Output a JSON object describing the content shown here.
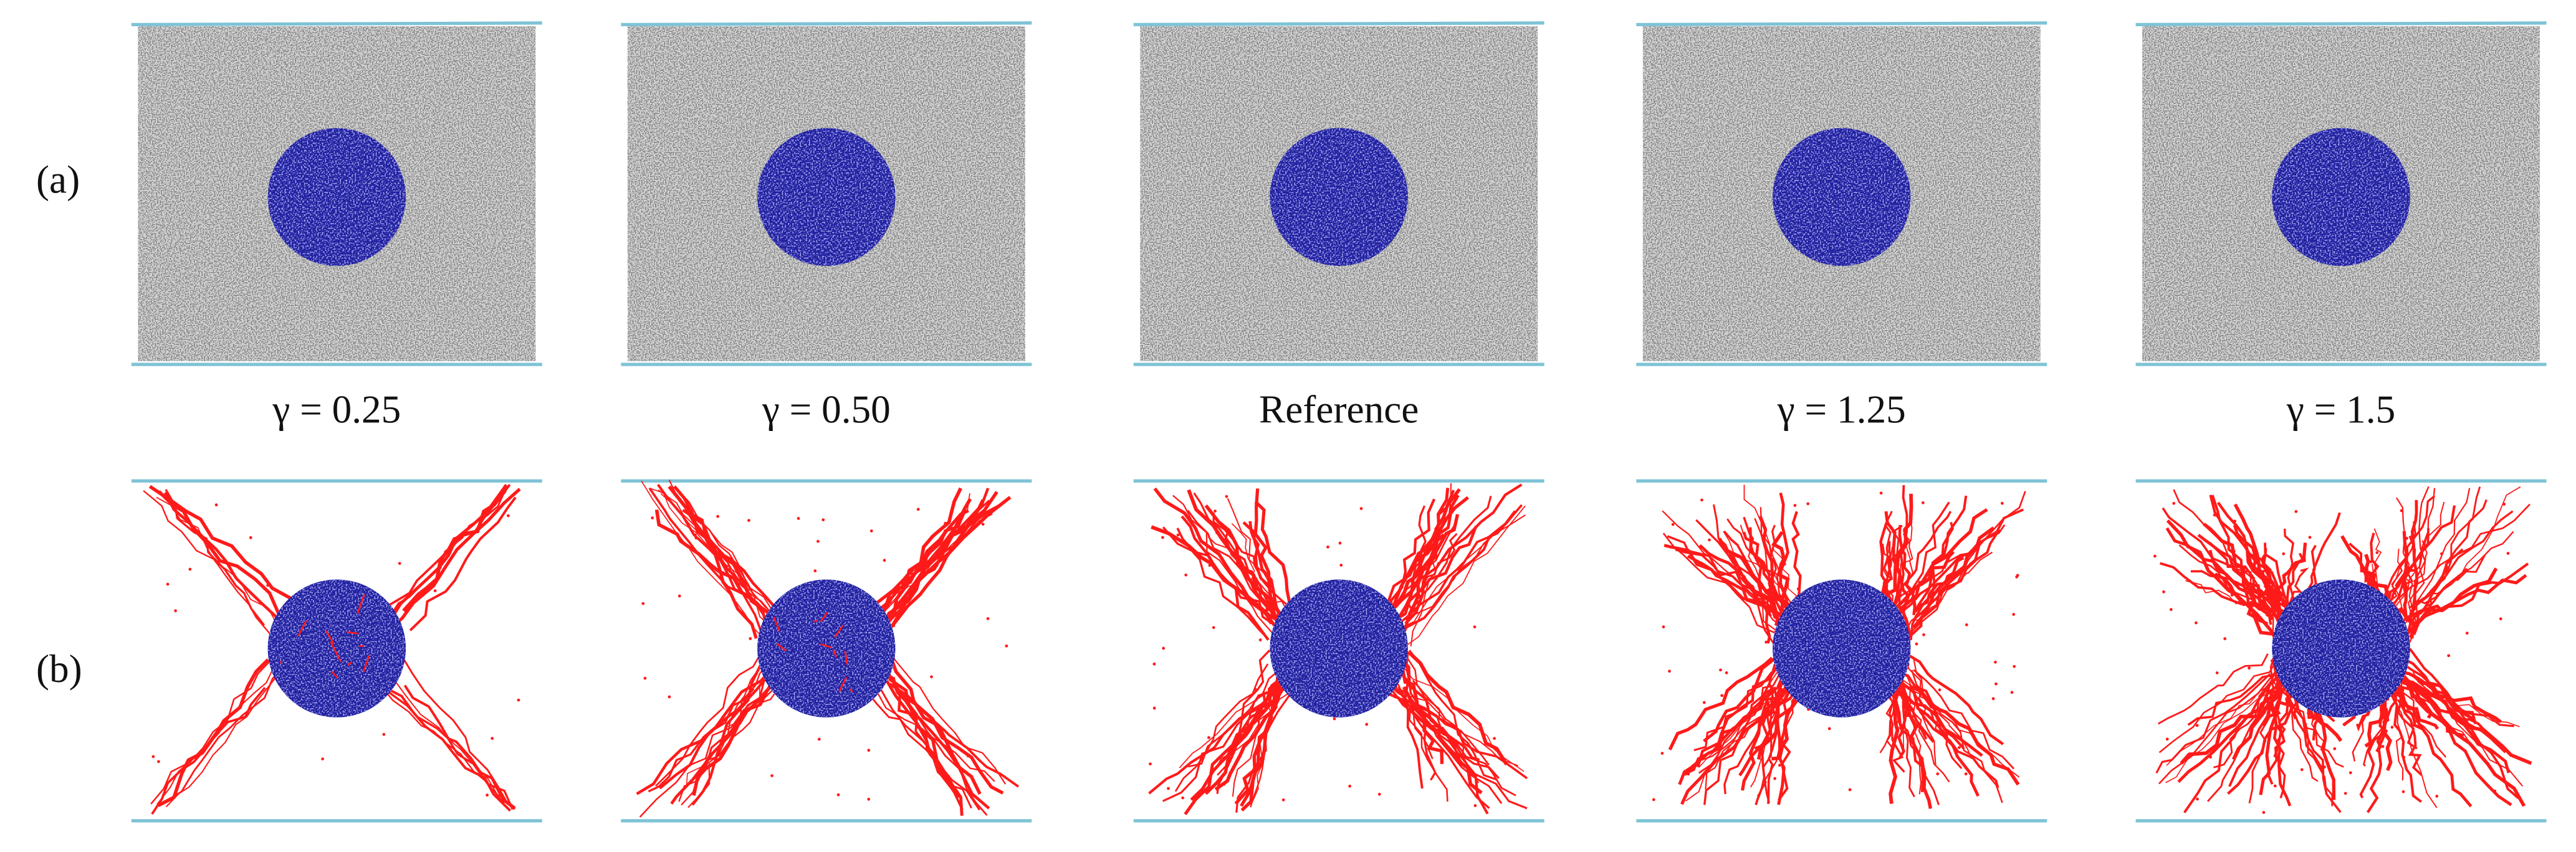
{
  "row_labels": [
    "(a)",
    "(b)"
  ],
  "captions": [
    "γ = 0.25",
    "γ = 0.50",
    "Reference",
    "γ = 1.25",
    "γ = 1.5"
  ]
}
